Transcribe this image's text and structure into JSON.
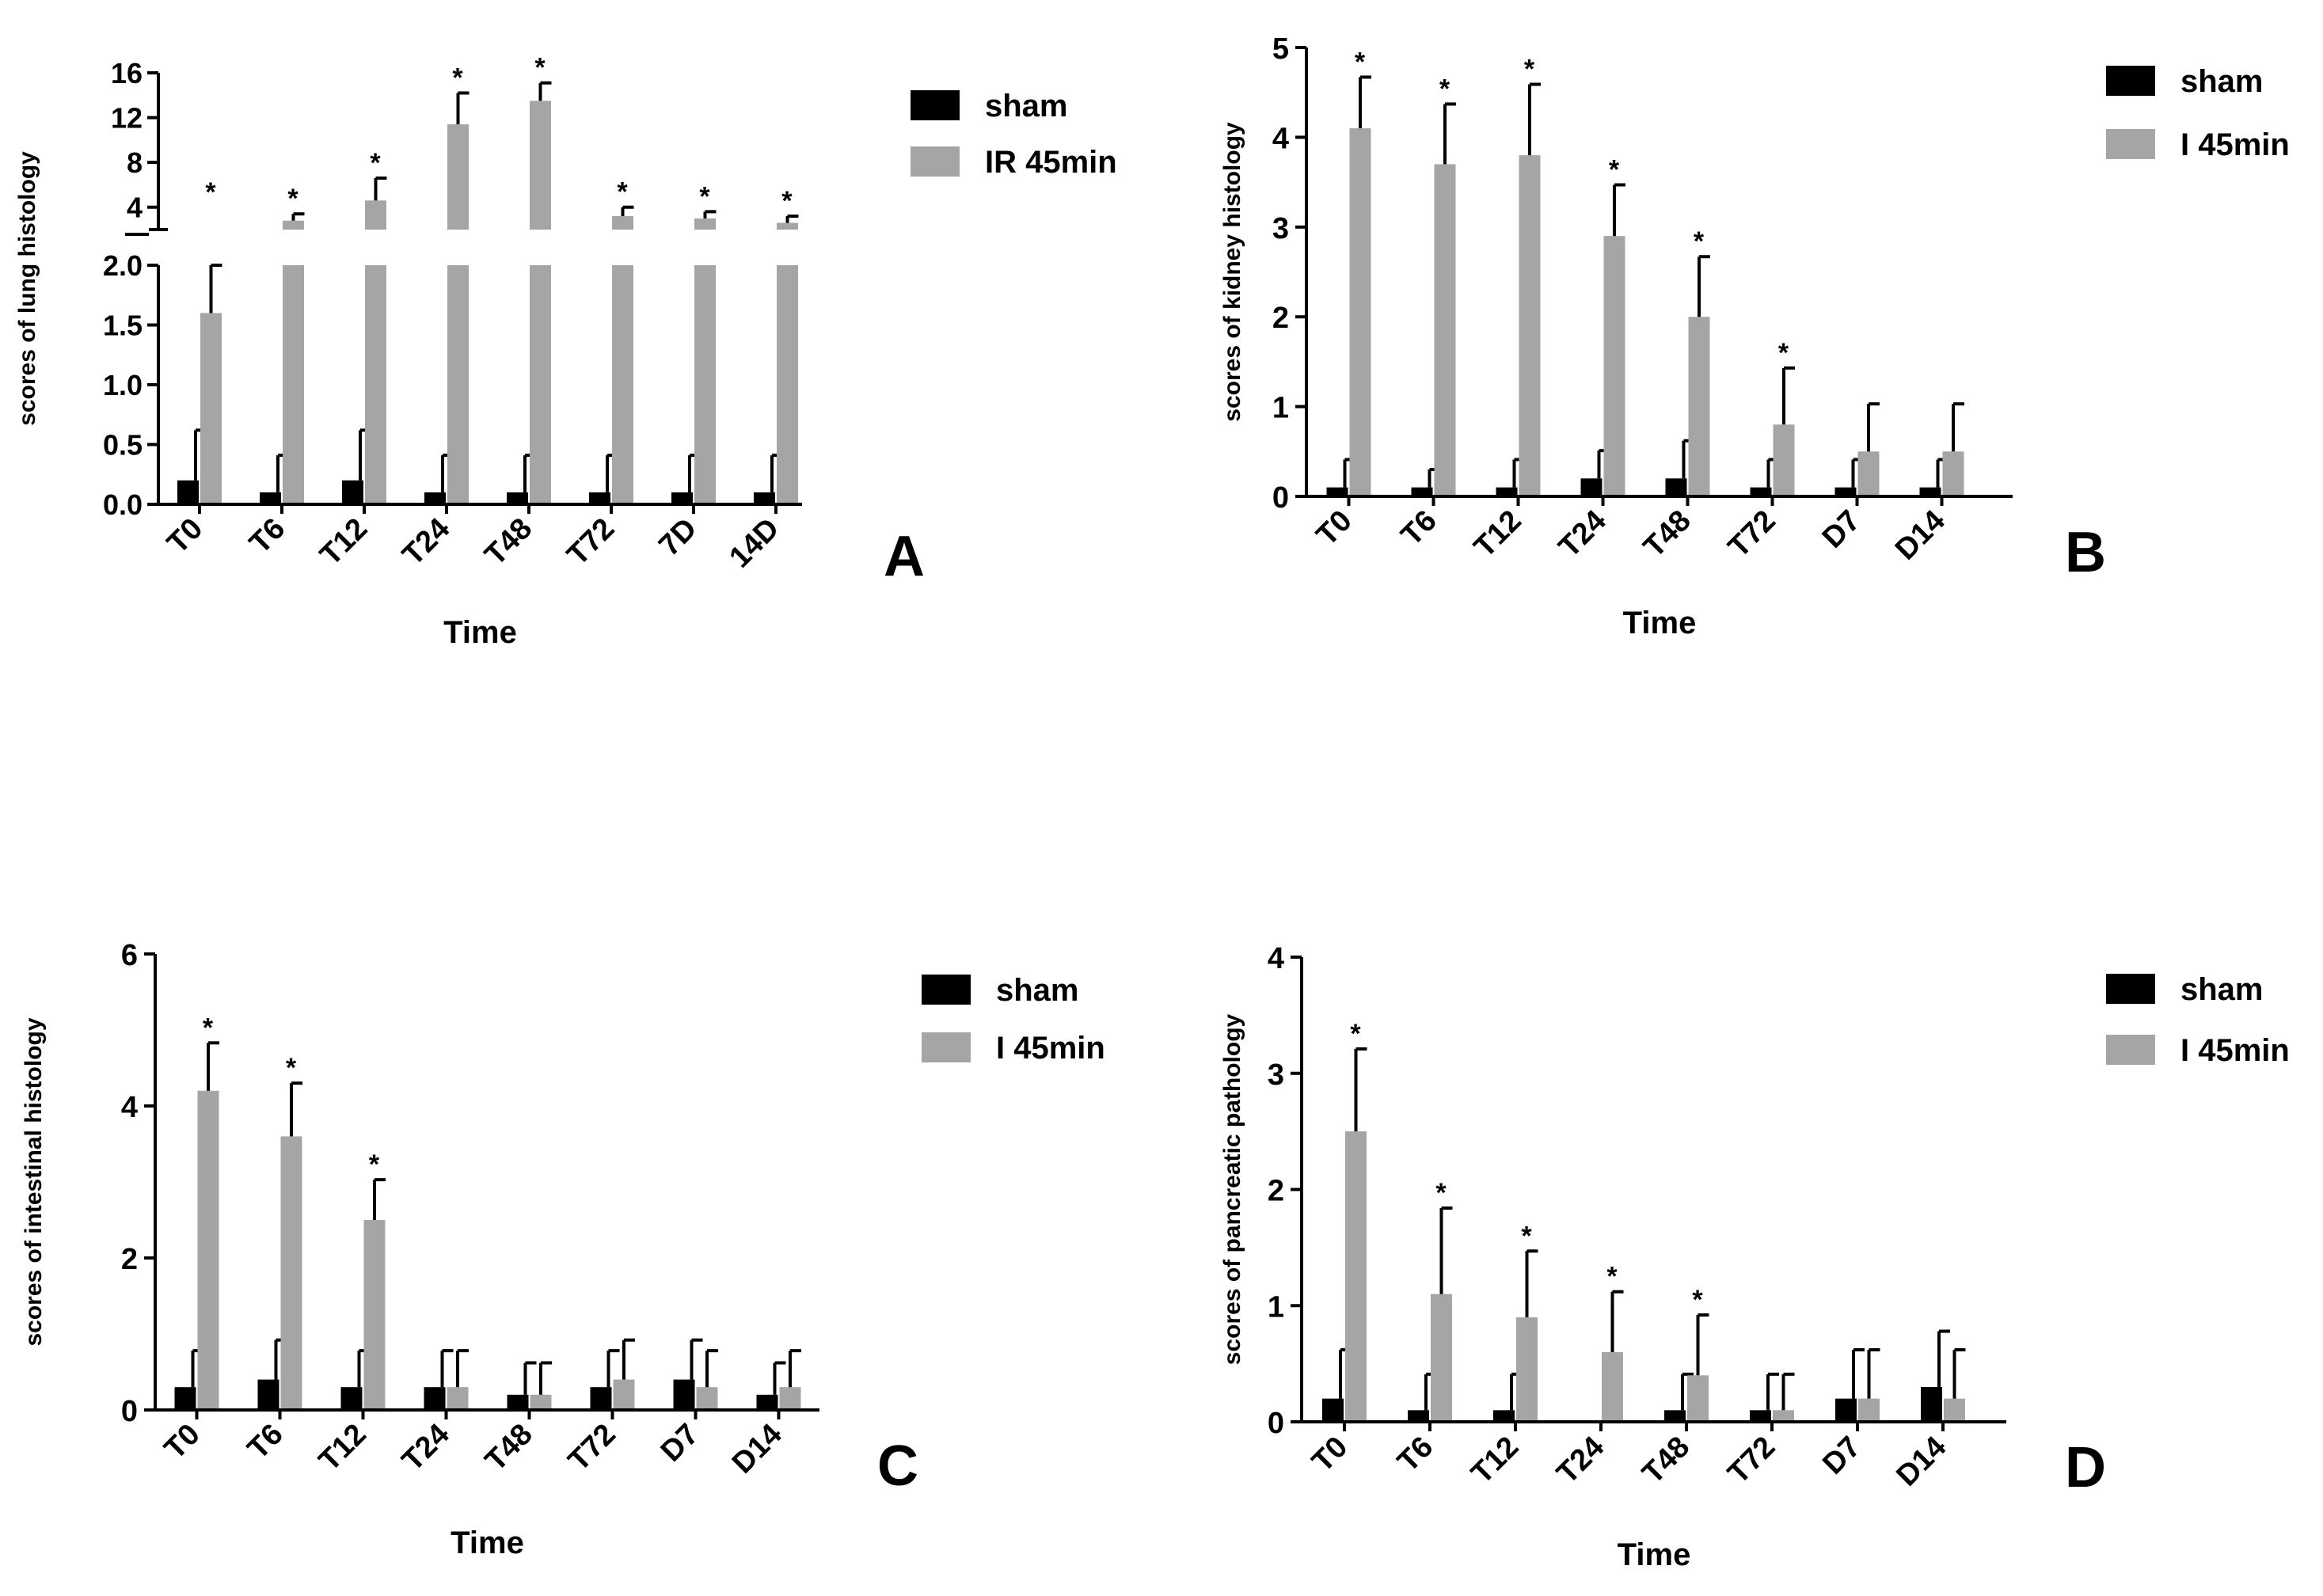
{
  "colors": {
    "sham": "#000000",
    "treated": "#a5a5a7",
    "axis": "#000000"
  },
  "chart_data": [
    {
      "panel": "A",
      "type": "bar",
      "title": "",
      "xlabel": "Time",
      "ylabel": "scores of lung histology",
      "categories": [
        "T0",
        "T6",
        "T12",
        "T24",
        "T48",
        "T72",
        "7D",
        "14D"
      ],
      "series": [
        {
          "name": "sham",
          "values": [
            0.2,
            0.1,
            0.2,
            0.1,
            0.1,
            0.1,
            0.1,
            0.1
          ],
          "errors": [
            0.42,
            0.31,
            0.42,
            0.31,
            0.31,
            0.31,
            0.31,
            0.31
          ]
        },
        {
          "name": "IR 45min",
          "values": [
            1.6,
            2.8,
            4.6,
            11.4,
            13.5,
            3.2,
            3.0,
            2.6
          ],
          "errors": [
            0.4,
            0.6,
            2.0,
            2.8,
            1.6,
            0.8,
            0.6,
            0.6
          ]
        }
      ],
      "significance": [
        "*",
        "*",
        "*",
        "*",
        "*",
        "*",
        "*",
        "*"
      ],
      "y_segments": [
        {
          "range": [
            0,
            2.0
          ],
          "ticks": [
            "0.0",
            "0.5",
            "1.0",
            "1.5",
            "2.0"
          ]
        },
        {
          "range": [
            2.0,
            16
          ],
          "ticks": [
            "4",
            "8",
            "12",
            "16"
          ]
        }
      ],
      "legend_position": "right"
    },
    {
      "panel": "B",
      "type": "bar",
      "title": "",
      "xlabel": "Time",
      "ylabel": "scores of kidney histology",
      "categories": [
        "T0",
        "T6",
        "T12",
        "T24",
        "T48",
        "T72",
        "D7",
        "D14"
      ],
      "series": [
        {
          "name": "sham",
          "values": [
            0.1,
            0.1,
            0.1,
            0.2,
            0.2,
            0.1,
            0.1,
            0.1
          ],
          "errors": [
            0.31,
            0.2,
            0.31,
            0.31,
            0.42,
            0.31,
            0.31,
            0.31
          ]
        },
        {
          "name": "I 45min",
          "values": [
            4.1,
            3.7,
            3.8,
            2.9,
            2.0,
            0.8,
            0.5,
            0.5
          ],
          "errors": [
            0.57,
            0.67,
            0.79,
            0.57,
            0.67,
            0.63,
            0.53,
            0.53
          ]
        }
      ],
      "significance": [
        "*",
        "*",
        "*",
        "*",
        "*",
        "*",
        "",
        ""
      ],
      "ylim": [
        0,
        5
      ],
      "yticks": [
        "0",
        "1",
        "2",
        "3",
        "4",
        "5"
      ],
      "legend_position": "right"
    },
    {
      "panel": "C",
      "type": "bar",
      "title": "",
      "xlabel": "Time",
      "ylabel": "scores of intestinal histology",
      "categories": [
        "T0",
        "T6",
        "T12",
        "T24",
        "T48",
        "T72",
        "D7",
        "D14"
      ],
      "series": [
        {
          "name": "sham",
          "values": [
            0.3,
            0.4,
            0.3,
            0.3,
            0.2,
            0.3,
            0.4,
            0.2
          ],
          "errors": [
            0.48,
            0.52,
            0.48,
            0.48,
            0.42,
            0.48,
            0.52,
            0.42
          ]
        },
        {
          "name": "I 45min",
          "values": [
            4.2,
            3.6,
            2.5,
            0.3,
            0.2,
            0.4,
            0.3,
            0.3
          ],
          "errors": [
            0.63,
            0.7,
            0.53,
            0.48,
            0.42,
            0.52,
            0.48,
            0.48
          ]
        }
      ],
      "significance": [
        "*",
        "*",
        "*",
        "",
        "",
        "",
        "",
        ""
      ],
      "ylim": [
        0,
        6
      ],
      "yticks": [
        "0",
        "2",
        "4",
        "6"
      ],
      "legend_position": "right"
    },
    {
      "panel": "D",
      "type": "bar",
      "title": "",
      "xlabel": "Time",
      "ylabel": "scores of pancreatic pathology",
      "categories": [
        "T0",
        "T6",
        "T12",
        "T24",
        "T48",
        "T72",
        "D7",
        "D14"
      ],
      "series": [
        {
          "name": "sham",
          "values": [
            0.2,
            0.1,
            0.1,
            0.0,
            0.1,
            0.1,
            0.2,
            0.3
          ],
          "errors": [
            0.42,
            0.31,
            0.31,
            0.0,
            0.31,
            0.31,
            0.42,
            0.48
          ]
        },
        {
          "name": "I 45min",
          "values": [
            2.5,
            1.1,
            0.9,
            0.6,
            0.4,
            0.1,
            0.2,
            0.2
          ],
          "errors": [
            0.71,
            0.74,
            0.57,
            0.52,
            0.52,
            0.31,
            0.42,
            0.42
          ]
        }
      ],
      "significance": [
        "*",
        "*",
        "*",
        "*",
        "*",
        "",
        "",
        ""
      ],
      "ylim": [
        0,
        4
      ],
      "yticks": [
        "0",
        "1",
        "2",
        "3",
        "4"
      ],
      "legend_position": "right"
    }
  ]
}
